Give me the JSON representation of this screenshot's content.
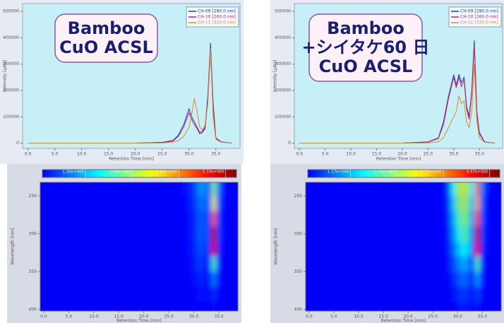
{
  "chart_data": [
    {
      "type": "line",
      "annotation": [
        "Bamboo",
        "CuO ACSL"
      ],
      "xlabel": "Retention Time [min]",
      "ylabel": "Intensity [µAU]",
      "x": [
        0,
        10,
        20,
        25,
        27,
        28,
        29,
        30,
        30.5,
        31,
        31.5,
        32,
        32.5,
        33,
        33.5,
        34,
        34.5,
        35,
        36,
        38
      ],
      "series": [
        {
          "name": "CH-09 [280.0 nm]",
          "color": "#2233cc",
          "values": [
            0,
            0,
            0,
            3000,
            10000,
            30000,
            70000,
            130000,
            100000,
            80000,
            60000,
            40000,
            45000,
            60000,
            180000,
            380000,
            150000,
            20000,
            5000,
            0
          ]
        },
        {
          "name": "CH-10 [260.0 nm]",
          "color": "#d42050",
          "values": [
            0,
            0,
            0,
            2000,
            8000,
            25000,
            60000,
            115000,
            90000,
            70000,
            55000,
            35000,
            40000,
            55000,
            160000,
            350000,
            130000,
            18000,
            4000,
            0
          ]
        },
        {
          "name": "CH-11 [320.0 nm]",
          "color": "#e08a20",
          "values": [
            0,
            0,
            0,
            1000,
            4000,
            10000,
            25000,
            60000,
            110000,
            170000,
            120000,
            60000,
            50000,
            70000,
            150000,
            360000,
            100000,
            15000,
            3000,
            0
          ]
        }
      ],
      "xlim": [
        -1,
        39.5
      ],
      "ylim": [
        -20000,
        530000
      ],
      "xticks": [
        {
          "value": 0,
          "label": "0.0"
        },
        {
          "value": 5,
          "label": "5.0"
        },
        {
          "value": 10,
          "label": "10.0"
        },
        {
          "value": 15,
          "label": "15.0"
        },
        {
          "value": 20,
          "label": "20.0"
        },
        {
          "value": 25,
          "label": "25.0"
        },
        {
          "value": 30,
          "label": "30.0"
        },
        {
          "value": 35,
          "label": "35.0"
        }
      ],
      "yticks": [
        0,
        100000,
        200000,
        300000,
        400000,
        500000
      ]
    },
    {
      "type": "line",
      "annotation": [
        "Bamboo",
        "+シイタケ60 日",
        "CuO ACSL"
      ],
      "xlabel": "Retention Time [min]",
      "ylabel": "Intensity [µAU]",
      "x": [
        0,
        10,
        20,
        25,
        27,
        28,
        29,
        30,
        30.5,
        31,
        31.5,
        32,
        32.5,
        33,
        33.5,
        34,
        34.5,
        35,
        36,
        38
      ],
      "series": [
        {
          "name": "CH-09 [280.0 nm]",
          "color": "#2233cc",
          "values": [
            0,
            0,
            0,
            5000,
            20000,
            80000,
            180000,
            260000,
            220000,
            260000,
            230000,
            250000,
            140000,
            100000,
            200000,
            390000,
            120000,
            40000,
            5000,
            0
          ]
        },
        {
          "name": "CH-10 [260.0 nm]",
          "color": "#d42050",
          "values": [
            0,
            0,
            0,
            4000,
            18000,
            70000,
            170000,
            250000,
            210000,
            250000,
            215000,
            240000,
            130000,
            90000,
            190000,
            370000,
            110000,
            35000,
            4000,
            0
          ]
        },
        {
          "name": "CH-11 [320.0 nm]",
          "color": "#e08a20",
          "values": [
            0,
            0,
            0,
            1000,
            5000,
            20000,
            60000,
            100000,
            120000,
            180000,
            150000,
            160000,
            80000,
            60000,
            120000,
            300000,
            80000,
            20000,
            3000,
            0
          ]
        }
      ],
      "xlim": [
        -1,
        39.5
      ],
      "ylim": [
        -20000,
        530000
      ],
      "xticks": [
        {
          "value": 0,
          "label": "0.0"
        },
        {
          "value": 5,
          "label": "5.0"
        },
        {
          "value": 10,
          "label": "10.0"
        },
        {
          "value": 15,
          "label": "15.0"
        },
        {
          "value": 20,
          "label": "20.0"
        },
        {
          "value": 25,
          "label": "25.0"
        },
        {
          "value": 30,
          "label": "30.0"
        },
        {
          "value": 35,
          "label": "35.0"
        }
      ],
      "yticks": [
        0,
        100000,
        200000,
        300000,
        400000,
        500000
      ]
    },
    {
      "type": "contour",
      "xlabel": "Retention Time [min]",
      "ylabel": "Wavelength [nm]",
      "x": [
        28,
        29,
        30,
        31,
        32,
        33,
        34,
        35,
        36
      ],
      "y": [
        240,
        260,
        280,
        300,
        320,
        340,
        360,
        380,
        400
      ],
      "z": [
        [
          10000,
          20000,
          40000,
          90000,
          100000,
          60000,
          250000,
          80000,
          10000
        ],
        [
          5000,
          15000,
          30000,
          70000,
          80000,
          50000,
          300000,
          60000,
          5000
        ],
        [
          5000,
          10000,
          25000,
          60000,
          60000,
          40000,
          400000,
          40000,
          5000
        ],
        [
          5000,
          10000,
          25000,
          60000,
          60000,
          40000,
          500000,
          40000,
          5000
        ],
        [
          5000,
          10000,
          20000,
          50000,
          50000,
          30000,
          480000,
          30000,
          5000
        ],
        [
          0,
          5000,
          15000,
          40000,
          30000,
          20000,
          200000,
          20000,
          0
        ],
        [
          0,
          0,
          10000,
          25000,
          20000,
          10000,
          80000,
          10000,
          0
        ],
        [
          0,
          0,
          5000,
          10000,
          10000,
          5000,
          30000,
          5000,
          0
        ],
        [
          0,
          0,
          0,
          5000,
          5000,
          0,
          10000,
          0,
          0
        ]
      ],
      "zlim": [
        0,
        540000
      ],
      "zticks": [
        {
          "value": 120000,
          "label": "1.20e+005"
        },
        {
          "value": 250000,
          "label": "2.50e+005"
        },
        {
          "value": 380000,
          "label": "3.80e+005"
        },
        {
          "value": 510000,
          "label": "5.10e+005"
        }
      ],
      "xlim": [
        -0.7,
        38.8
      ],
      "ylim": [
        232,
        402
      ],
      "xticks": [
        {
          "value": 0,
          "label": "0.0"
        },
        {
          "value": 5,
          "label": "5.0"
        },
        {
          "value": 10,
          "label": "10.0"
        },
        {
          "value": 15,
          "label": "15.0"
        },
        {
          "value": 20,
          "label": "20.0"
        },
        {
          "value": 25,
          "label": "25.0"
        },
        {
          "value": 30,
          "label": "30.0"
        },
        {
          "value": 35,
          "label": "35.0"
        }
      ],
      "yticks": [
        250,
        300,
        350,
        400
      ]
    },
    {
      "type": "contour",
      "xlabel": "Retention Time [min]",
      "ylabel": "Wavelength [nm]",
      "x": [
        28,
        29,
        30,
        31,
        32,
        33,
        34,
        35,
        36
      ],
      "y": [
        240,
        260,
        280,
        300,
        320,
        340,
        360,
        380,
        400
      ],
      "z": [
        [
          60000,
          150000,
          250000,
          270000,
          260000,
          150000,
          380000,
          80000,
          10000
        ],
        [
          40000,
          120000,
          220000,
          250000,
          240000,
          120000,
          350000,
          60000,
          5000
        ],
        [
          30000,
          100000,
          180000,
          230000,
          220000,
          100000,
          400000,
          50000,
          5000
        ],
        [
          20000,
          80000,
          150000,
          200000,
          190000,
          80000,
          480000,
          40000,
          5000
        ],
        [
          15000,
          60000,
          120000,
          160000,
          150000,
          60000,
          450000,
          30000,
          5000
        ],
        [
          10000,
          40000,
          80000,
          110000,
          100000,
          40000,
          200000,
          20000,
          0
        ],
        [
          5000,
          20000,
          50000,
          70000,
          60000,
          20000,
          100000,
          10000,
          0
        ],
        [
          0,
          10000,
          25000,
          40000,
          30000,
          10000,
          40000,
          5000,
          0
        ],
        [
          0,
          5000,
          10000,
          20000,
          15000,
          5000,
          15000,
          0,
          0
        ]
      ],
      "zlim": [
        0,
        525000
      ],
      "zticks": [
        {
          "value": 117000,
          "label": "1.17e+005"
        },
        {
          "value": 244000,
          "label": "2.44e+005"
        },
        {
          "value": 371000,
          "label": "3.71e+005"
        },
        {
          "value": 497000,
          "label": "4.97e+005"
        }
      ],
      "xlim": [
        -0.7,
        38.8
      ],
      "ylim": [
        232,
        402
      ],
      "xticks": [
        {
          "value": 0,
          "label": "0.0"
        },
        {
          "value": 5,
          "label": "5.0"
        },
        {
          "value": 10,
          "label": "10.0"
        },
        {
          "value": 15,
          "label": "15.0"
        },
        {
          "value": 20,
          "label": "20.0"
        },
        {
          "value": 25,
          "label": "25.0"
        },
        {
          "value": 30,
          "label": "30.0"
        },
        {
          "value": 35,
          "label": "35.0"
        }
      ],
      "yticks": [
        250,
        300,
        350,
        400
      ]
    }
  ]
}
